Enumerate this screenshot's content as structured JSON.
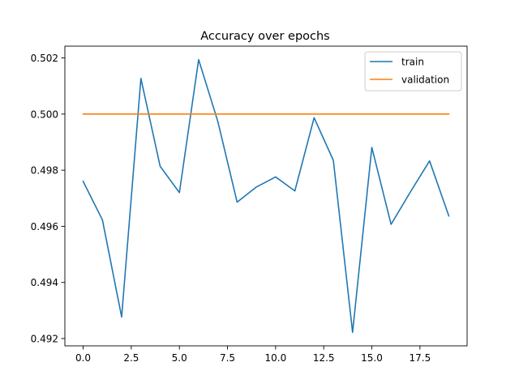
{
  "chart_data": {
    "type": "line",
    "title": "Accuracy over epochs",
    "xlabel": "",
    "ylabel": "",
    "x": [
      0,
      1,
      2,
      3,
      4,
      5,
      6,
      7,
      8,
      9,
      10,
      11,
      12,
      13,
      14,
      15,
      16,
      17,
      18,
      19
    ],
    "series": [
      {
        "name": "train",
        "color": "#1f77b4",
        "values": [
          0.4976,
          0.49623,
          0.49277,
          0.50127,
          0.49814,
          0.4972,
          0.50194,
          0.49973,
          0.49686,
          0.4974,
          0.49776,
          0.49726,
          0.49987,
          0.49835,
          0.49222,
          0.49881,
          0.49607,
          0.49722,
          0.49833,
          0.49637
        ]
      },
      {
        "name": "validation",
        "color": "#ff7f0e",
        "values": [
          0.5,
          0.5,
          0.5,
          0.5,
          0.5,
          0.5,
          0.5,
          0.5,
          0.5,
          0.5,
          0.5,
          0.5,
          0.5,
          0.5,
          0.5,
          0.5,
          0.5,
          0.5,
          0.5,
          0.5
        ]
      }
    ],
    "xlim": [
      -0.95,
      19.95
    ],
    "ylim": [
      0.49174,
      0.50242
    ],
    "xticks": [
      0.0,
      2.5,
      5.0,
      7.5,
      10.0,
      12.5,
      15.0,
      17.5
    ],
    "xtick_labels": [
      "0.0",
      "2.5",
      "5.0",
      "7.5",
      "10.0",
      "12.5",
      "15.0",
      "17.5"
    ],
    "yticks": [
      0.492,
      0.494,
      0.496,
      0.498,
      0.5,
      0.502
    ],
    "ytick_labels": [
      "0.492",
      "0.494",
      "0.496",
      "0.498",
      "0.500",
      "0.502"
    ],
    "grid": false,
    "legend_position": "upper right"
  }
}
